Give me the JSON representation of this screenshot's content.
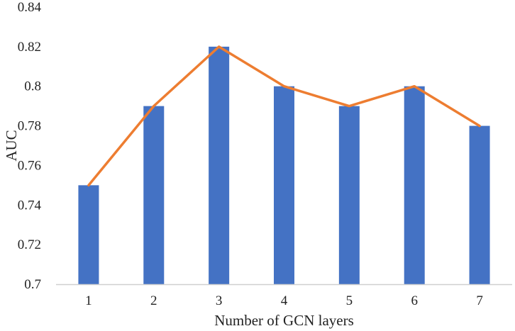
{
  "chart_data": {
    "type": "bar",
    "categories": [
      "1",
      "2",
      "3",
      "4",
      "5",
      "6",
      "7"
    ],
    "series": [
      {
        "type": "bar",
        "values": [
          0.75,
          0.79,
          0.82,
          0.8,
          0.79,
          0.8,
          0.78
        ],
        "color": "#4472c4"
      },
      {
        "type": "line",
        "values": [
          0.75,
          0.79,
          0.82,
          0.8,
          0.79,
          0.8,
          0.78
        ],
        "color": "#ed7d31"
      }
    ],
    "xlabel": "Number of GCN layers",
    "ylabel": "AUC",
    "ylim": [
      0.7,
      0.84
    ],
    "yticks": [
      "0.7",
      "0.72",
      "0.74",
      "0.76",
      "0.78",
      "0.8",
      "0.82",
      "0.84"
    ],
    "grid": false,
    "legend": "none"
  }
}
